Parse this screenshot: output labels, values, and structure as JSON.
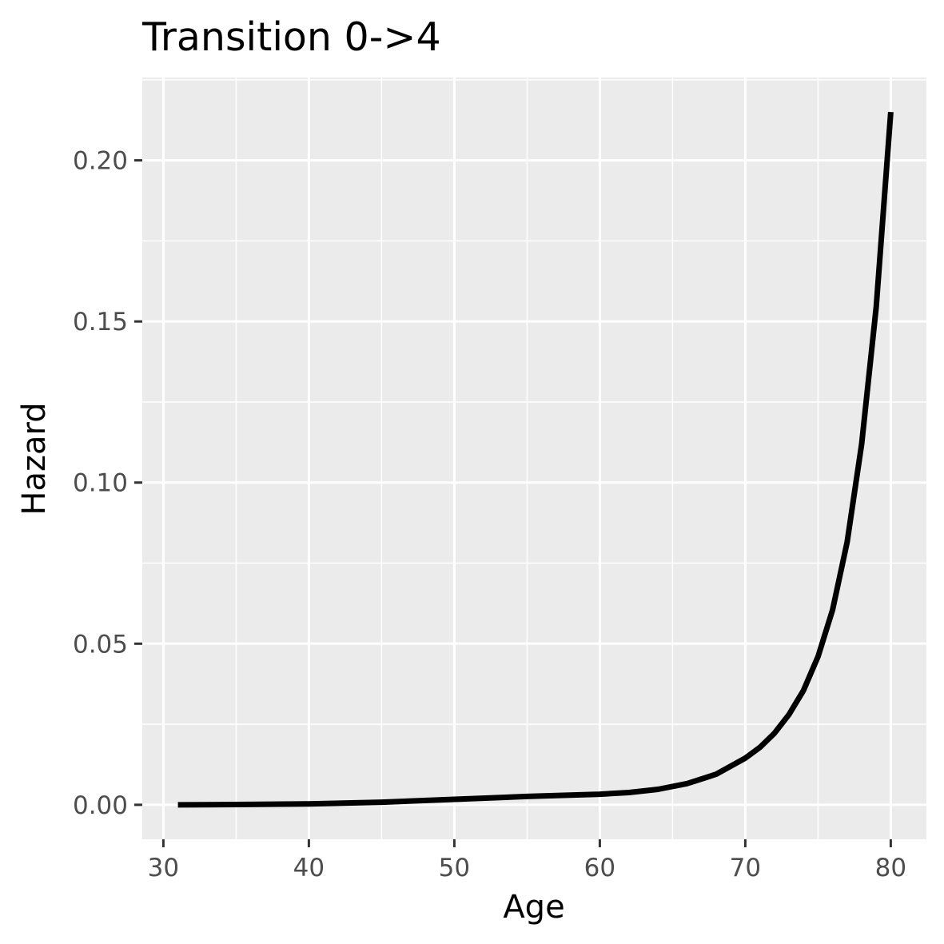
{
  "chart_data": {
    "type": "line",
    "title": "Transition 0->4",
    "xlabel": "Age",
    "ylabel": "Hazard",
    "xlim": [
      28.55,
      82.45
    ],
    "ylim": [
      -0.0107,
      0.2257
    ],
    "x_ticks": [
      30,
      40,
      50,
      60,
      70,
      80
    ],
    "x_tick_labels": [
      "30",
      "40",
      "50",
      "60",
      "70",
      "80"
    ],
    "y_ticks": [
      0.0,
      0.05,
      0.1,
      0.15,
      0.2
    ],
    "y_tick_labels": [
      "0.00",
      "0.05",
      "0.10",
      "0.15",
      "0.20"
    ],
    "grid": true,
    "colors": {
      "panel": "#ebebeb",
      "grid": "#ffffff",
      "line": "#000000"
    },
    "series": [
      {
        "x": [
          31,
          35,
          40,
          45,
          50,
          55,
          60,
          62,
          64,
          66,
          68,
          70,
          71,
          72,
          73,
          74,
          75,
          76,
          77,
          78,
          79,
          80
        ],
        "values": [
          0.0,
          0.0001,
          0.0003,
          0.0008,
          0.0017,
          0.0026,
          0.0033,
          0.0038,
          0.0048,
          0.0066,
          0.0095,
          0.0145,
          0.0178,
          0.0222,
          0.028,
          0.0355,
          0.046,
          0.0605,
          0.0815,
          0.112,
          0.1545,
          0.215
        ]
      }
    ]
  }
}
